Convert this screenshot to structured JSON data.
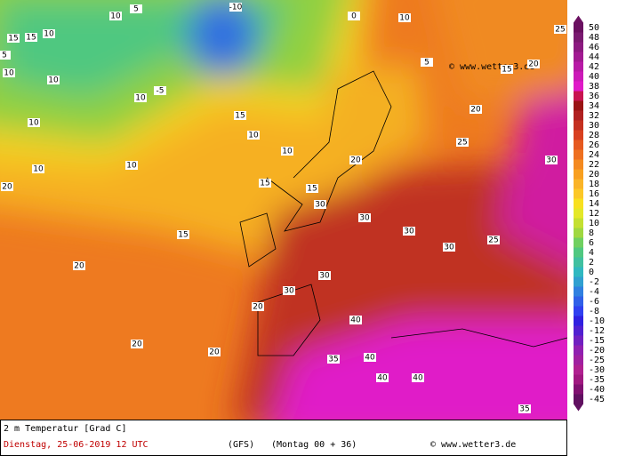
{
  "header": {
    "credit": "© www.wetter3.de"
  },
  "footer": {
    "title": "2 m Temperatur [Grad C]",
    "date": "Dienstag, 25-06-2019  12 UTC",
    "model": "(GFS)",
    "run": "(Montag 00 + 36)",
    "credit": "© www.wetter3.de"
  },
  "map": {
    "labels": [
      -10,
      10,
      5,
      15,
      15,
      10,
      5,
      10,
      10,
      -5,
      10,
      10,
      15,
      10,
      10,
      10,
      10,
      20,
      15,
      15,
      15,
      20,
      20,
      20,
      30,
      30,
      30,
      30,
      25,
      30,
      20,
      15,
      25,
      40,
      35,
      40,
      40,
      40,
      35,
      25,
      30,
      30,
      20,
      20,
      20,
      5,
      10,
      0
    ]
  },
  "legend": {
    "ticks": [
      50,
      48,
      46,
      44,
      42,
      40,
      38,
      36,
      34,
      32,
      30,
      28,
      26,
      24,
      22,
      20,
      18,
      16,
      14,
      12,
      10,
      8,
      6,
      4,
      2,
      0,
      -2,
      -4,
      -6,
      -8,
      -10,
      -12,
      -15,
      -20,
      -25,
      -30,
      -35,
      -40,
      -45
    ],
    "colors": [
      "#6a1060",
      "#7a1a70",
      "#8c1a80",
      "#a21a92",
      "#b81aa6",
      "#cc1ab8",
      "#e01ac8",
      "#c81450",
      "#9a1414",
      "#b02020",
      "#c43020",
      "#d84020",
      "#e65a20",
      "#ee7020",
      "#f48a20",
      "#f8a020",
      "#fab428",
      "#fcc828",
      "#f8e020",
      "#e4e828",
      "#c4e030",
      "#a0d840",
      "#70d060",
      "#50c880",
      "#40c0a0",
      "#30b8c0",
      "#30a0d0",
      "#3080e0",
      "#3060e8",
      "#3040f0",
      "#3020e0",
      "#5020d0",
      "#7020c0",
      "#9020b0",
      "#a020a0",
      "#b02090",
      "#a01880",
      "#801070",
      "#601060"
    ]
  }
}
